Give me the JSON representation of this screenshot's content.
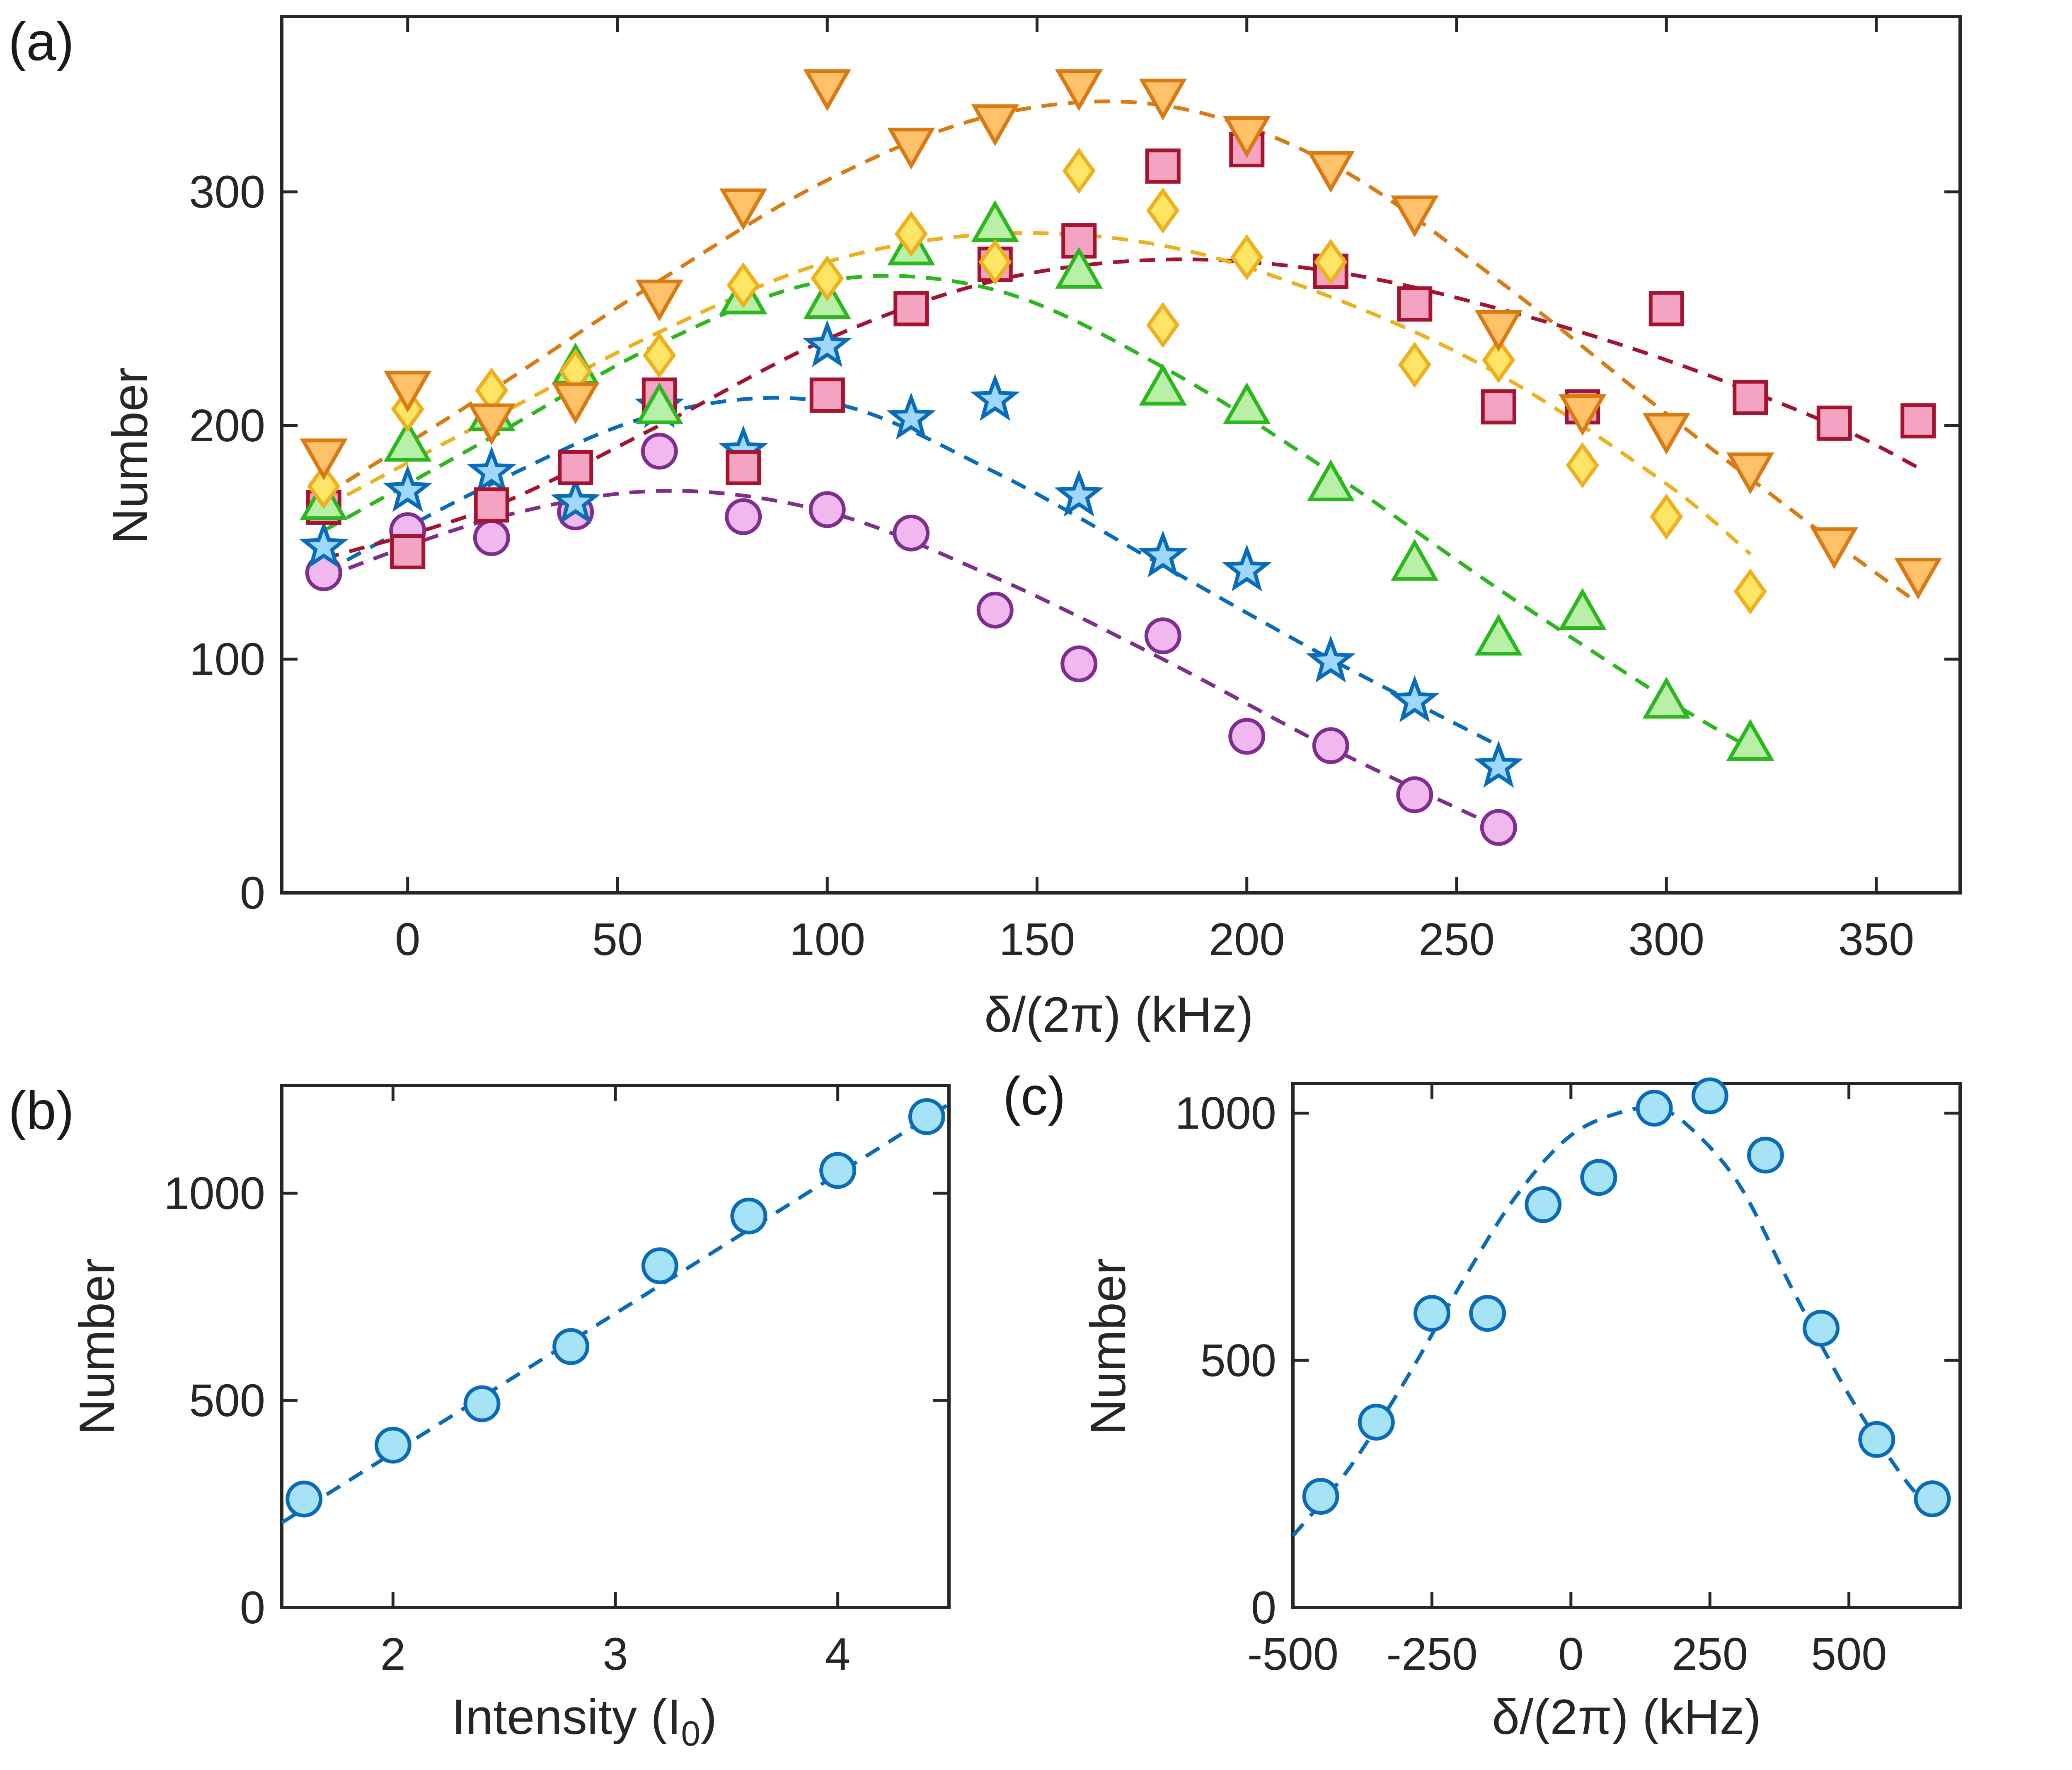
{
  "chart_data": [
    {
      "panel": "(a)",
      "type": "scatter",
      "xlabel": "δ/(2π) (kHz)",
      "ylabel": "Number",
      "xlim": [
        -30,
        370
      ],
      "ylim": [
        0,
        375
      ],
      "xticks": [
        0,
        50,
        100,
        150,
        200,
        250,
        300,
        350
      ],
      "yticks": [
        0,
        100,
        200,
        300
      ],
      "series": [
        {
          "name": "circles",
          "marker": "circle",
          "edge": "#7e2f8e",
          "face": "#f0b8ee",
          "x": [
            -20,
            0,
            20,
            40,
            60,
            80,
            100,
            120,
            140,
            160,
            180,
            200,
            220,
            240,
            260
          ],
          "y": [
            137,
            155,
            152,
            163,
            189,
            161,
            164,
            154,
            121,
            98,
            110,
            67,
            63,
            42,
            28
          ],
          "fit_x": [
            -20,
            20,
            60,
            100,
            140,
            180,
            220,
            260
          ],
          "fit_y": [
            135,
            160,
            172,
            163,
            135,
            100,
            62,
            28
          ]
        },
        {
          "name": "stars",
          "marker": "star",
          "edge": "#0a6cb8",
          "face": "#9ed8ff",
          "x": [
            -20,
            0,
            20,
            40,
            60,
            80,
            100,
            120,
            140,
            160,
            180,
            200,
            220,
            240,
            260
          ],
          "y": [
            148,
            172,
            180,
            167,
            208,
            189,
            234,
            203,
            211,
            170,
            144,
            138,
            99,
            82,
            54
          ],
          "fit_x": [
            -20,
            20,
            60,
            100,
            140,
            180,
            220,
            260
          ],
          "fit_y": [
            137,
            175,
            205,
            210,
            180,
            140,
            100,
            63
          ]
        },
        {
          "name": "squares",
          "marker": "square",
          "edge": "#a2142f",
          "face": "#f4a3c3",
          "x": [
            -20,
            0,
            20,
            40,
            60,
            80,
            100,
            120,
            140,
            160,
            180,
            200,
            220,
            240,
            260,
            280,
            300,
            320,
            340,
            360
          ],
          "y": [
            165,
            146,
            166,
            182,
            213,
            182,
            213,
            250,
            269,
            279,
            311,
            318,
            266,
            252,
            208,
            208,
            250,
            212,
            201,
            202
          ],
          "fit_x": [
            -20,
            20,
            60,
            100,
            140,
            180,
            220,
            260,
            300,
            340,
            360
          ],
          "fit_y": [
            143,
            165,
            200,
            237,
            262,
            271,
            266,
            250,
            228,
            200,
            182
          ]
        },
        {
          "name": "up-triangles",
          "marker": "triangle-up",
          "edge": "#2cb71f",
          "face": "#b8f0a8",
          "x": [
            -20,
            0,
            20,
            40,
            60,
            80,
            100,
            120,
            140,
            160,
            180,
            200,
            220,
            240,
            260,
            280,
            300,
            320
          ],
          "y": [
            167,
            192,
            205,
            225,
            208,
            255,
            253,
            276,
            286,
            266,
            216,
            208,
            175,
            141,
            109,
            120,
            82,
            64
          ],
          "fit_x": [
            -20,
            20,
            60,
            100,
            140,
            180,
            220,
            260,
            300,
            320
          ],
          "fit_y": [
            155,
            195,
            235,
            262,
            258,
            225,
            180,
            130,
            83,
            62
          ]
        },
        {
          "name": "diamonds",
          "marker": "diamond",
          "edge": "#edb120",
          "face": "#ffe566",
          "x": [
            -20,
            0,
            20,
            40,
            60,
            80,
            100,
            120,
            140,
            160,
            180,
            180,
            200,
            220,
            240,
            260,
            280,
            300,
            320
          ],
          "y": [
            174,
            207,
            215,
            223,
            230,
            260,
            263,
            282,
            270,
            309,
            292,
            243,
            272,
            270,
            226,
            228,
            183,
            161,
            129
          ],
          "fit_x": [
            -20,
            20,
            60,
            100,
            140,
            180,
            220,
            260,
            300,
            320
          ],
          "fit_y": [
            165,
            203,
            240,
            270,
            282,
            277,
            255,
            222,
            175,
            145
          ]
        },
        {
          "name": "down-triangles",
          "marker": "triangle-down",
          "edge": "#d97a12",
          "face": "#ffc26b",
          "x": [
            -20,
            0,
            20,
            40,
            60,
            80,
            100,
            120,
            140,
            160,
            180,
            200,
            220,
            240,
            260,
            280,
            300,
            320,
            340,
            360
          ],
          "y": [
            187,
            216,
            202,
            211,
            255,
            294,
            345,
            320,
            330,
            345,
            341,
            325,
            310,
            291,
            242,
            206,
            198,
            181,
            149,
            136
          ],
          "fit_x": [
            -20,
            20,
            60,
            100,
            140,
            180,
            220,
            260,
            300,
            340,
            360
          ],
          "fit_y": [
            170,
            215,
            262,
            305,
            333,
            337,
            312,
            262,
            205,
            150,
            124
          ]
        }
      ]
    },
    {
      "panel": "(b)",
      "type": "scatter",
      "xlabel": "Intensity (I",
      "xlabel_sub": "0",
      "xlabel_close": ")",
      "ylabel": "Number",
      "xlim": [
        1.5,
        4.5
      ],
      "ylim": [
        0,
        1260
      ],
      "xticks": [
        2,
        3,
        4
      ],
      "yticks": [
        0,
        500,
        1000
      ],
      "series": [
        {
          "name": "intensity",
          "marker": "circle",
          "edge": "#0a6cb8",
          "face": "#a6e3f7",
          "x": [
            1.6,
            2.0,
            2.4,
            2.8,
            3.2,
            3.6,
            4.0,
            4.4
          ],
          "y": [
            262,
            392,
            492,
            630,
            825,
            945,
            1055,
            1185
          ],
          "fit_x": [
            1.5,
            4.5
          ],
          "fit_y": [
            205,
            1215
          ]
        }
      ]
    },
    {
      "panel": "(c)",
      "type": "scatter",
      "xlabel": "δ/(2π) (kHz)",
      "ylabel": "Number",
      "xlim": [
        -500,
        700
      ],
      "ylim": [
        0,
        1060
      ],
      "xticks": [
        -500,
        -250,
        0,
        250,
        500
      ],
      "yticks": [
        0,
        500,
        1000
      ],
      "series": [
        {
          "name": "detuning",
          "marker": "circle",
          "edge": "#0a6cb8",
          "face": "#a6e3f7",
          "x": [
            -450,
            -350,
            -250,
            -150,
            -50,
            50,
            150,
            250,
            350,
            450,
            550,
            650
          ],
          "y": [
            225,
            375,
            595,
            595,
            815,
            870,
            1010,
            1035,
            915,
            565,
            340,
            220
          ],
          "fit_x": [
            -500,
            -400,
            -300,
            -200,
            -100,
            0,
            100,
            150,
            200,
            300,
            400,
            500,
            600,
            650
          ],
          "fit_y": [
            145,
            280,
            455,
            650,
            830,
            955,
            1005,
            1005,
            985,
            860,
            640,
            430,
            260,
            200
          ]
        }
      ]
    }
  ]
}
